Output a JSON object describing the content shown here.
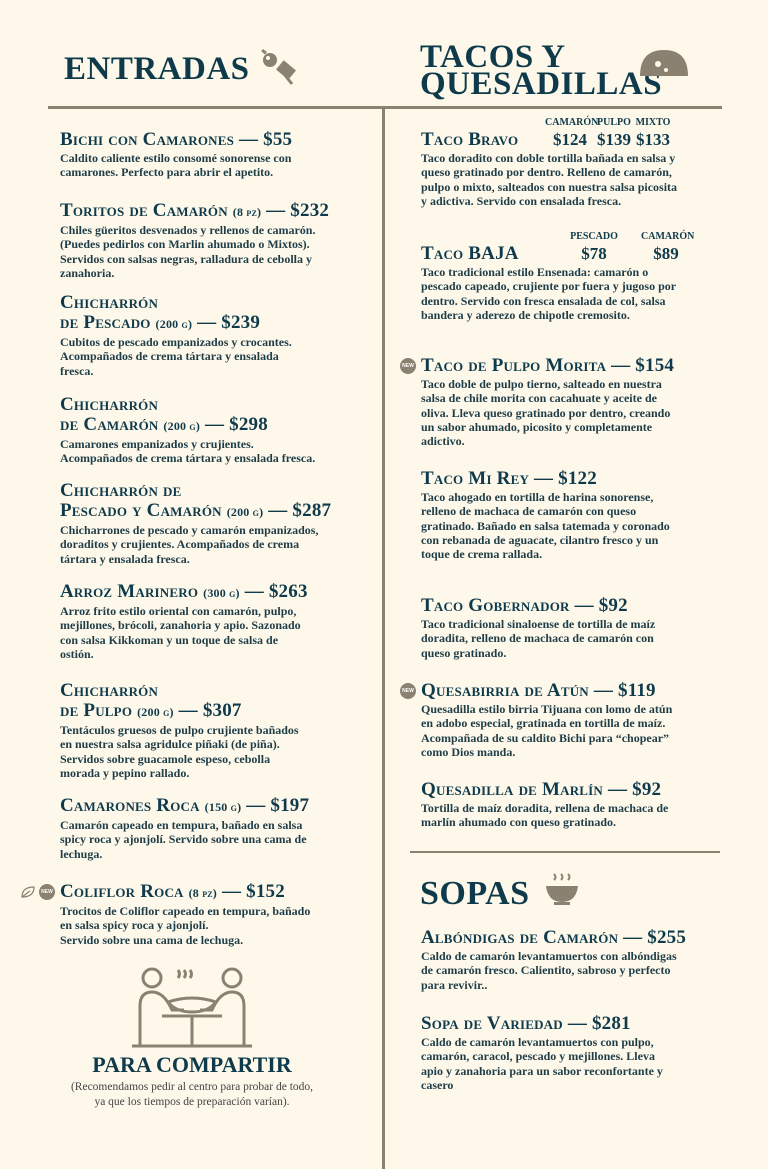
{
  "colors": {
    "primary": "#0f3a4b",
    "accent": "#8b8170",
    "background": "#fdf8ea"
  },
  "entradas": {
    "title": "ENTRADAS",
    "icon": "skewer-icon",
    "items": [
      {
        "name": [
          "Bichi con Camarones"
        ],
        "portion": "",
        "price": "— $55",
        "desc": [
          "Caldito caliente estilo consomé sonorense con",
          "camarones. Perfecto para abrir el apetito."
        ]
      },
      {
        "name": [
          "Toritos de Camarón"
        ],
        "portion": "(8 pz)",
        "price": "— $232",
        "desc": [
          "Chiles güeritos desvenados y rellenos de camarón.",
          "(Puedes pedirlos con Marlin ahumado o Mixtos).",
          "Servidos con salsas negras, ralladura de cebolla y",
          "zanahoria."
        ]
      },
      {
        "name": [
          "Chicharrón",
          "de Pescado"
        ],
        "portion": "(200 g)",
        "price": "— $239",
        "desc": [
          "Cubitos de pescado empanizados y crocantes.",
          "Acompañados de crema tártara y ensalada",
          "fresca."
        ]
      },
      {
        "name": [
          "Chicharrón",
          "de Camarón"
        ],
        "portion": "(200 g)",
        "price": "— $298",
        "desc": [
          "Camarones empanizados y crujientes.",
          "Acompañados de crema tártara y ensalada fresca."
        ]
      },
      {
        "name": [
          "Chicharrón de",
          "Pescado y Camarón"
        ],
        "portion": "(200 g)",
        "price": "— $287",
        "desc": [
          "Chicharrones de pescado y camarón empanizados,",
          "doraditos y crujientes. Acompañados de crema",
          "tártara y ensalada fresca."
        ]
      },
      {
        "name": [
          "Arroz Marinero"
        ],
        "portion": "(300 g)",
        "price": "— $263",
        "desc": [
          "Arroz frito estilo oriental con camarón, pulpo,",
          "mejillones, brócoli, zanahoria y apio. Sazonado",
          "con salsa Kikkoman y un toque de salsa de",
          "ostión."
        ]
      },
      {
        "name": [
          "Chicharrón",
          "de Pulpo"
        ],
        "portion": "(200 g)",
        "price": "— $307",
        "desc": [
          "Tentáculos gruesos de pulpo crujiente bañados",
          "en nuestra salsa agridulce piñaki (de piña).",
          "Servidos sobre guacamole espeso, cebolla",
          "morada y pepino rallado."
        ]
      },
      {
        "name": [
          "Camarones Roca"
        ],
        "portion": "(150 g)",
        "price": "— $197",
        "desc": [
          "Camarón capeado en tempura, bañado en salsa",
          "spicy roca y ajonjolí. Servido sobre una cama de",
          "lechuga."
        ]
      },
      {
        "name": [
          "Coliflor Roca"
        ],
        "portion": "(8 pz)",
        "price": "— $152",
        "desc": [
          "Trocitos de Coliflor capeado en tempura, bañado",
          "en salsa spicy roca y ajonjolí.",
          "Servido sobre una cama de lechuga."
        ],
        "badge": "NEW",
        "veg": true
      }
    ]
  },
  "compartir": {
    "title": "PARA COMPARTIR",
    "note": [
      "(Recomendamos pedir al centro para probar de todo,",
      "ya que los tiempos de preparación varían)."
    ],
    "icon": "sharing-table-icon"
  },
  "tacos": {
    "title": [
      "TACOS Y",
      "QUESADILLAS"
    ],
    "icon": "taco-icon",
    "items": [
      {
        "name": [
          "Taco Bravo"
        ],
        "portion": "",
        "price": "",
        "options": [
          {
            "label": "CAMARÓN",
            "price": "$124"
          },
          {
            "label": "PULPO",
            "price": "$139"
          },
          {
            "label": "MIXTO",
            "price": "$133"
          }
        ],
        "desc": [
          "Taco doradito con doble tortilla bañada en salsa y",
          "queso gratinado por dentro. Relleno de camarón,",
          "pulpo o mixto, salteados con nuestra salsa picosita",
          "y adictiva. Servido con ensalada fresca."
        ]
      },
      {
        "name": [
          "Taco BAJA"
        ],
        "portion": "",
        "price": "",
        "options": [
          {
            "label": "PESCADO",
            "price": "$78"
          },
          {
            "label": "CAMARÓN",
            "price": "$89"
          }
        ],
        "desc": [
          "Taco tradicional estilo Ensenada: camarón o",
          "pescado capeado, crujiente por fuera y jugoso por",
          "dentro. Servido con fresca ensalada de col, salsa",
          "bandera y aderezo de chipotle cremosito."
        ]
      },
      {
        "name": [
          "Taco de Pulpo Morita"
        ],
        "portion": "",
        "price": "— $154",
        "badge": "NEW",
        "desc": [
          "Taco doble de pulpo tierno, salteado en nuestra",
          "salsa de chile morita con cacahuate y aceite de",
          "oliva. Lleva queso gratinado por dentro, creando",
          "un sabor ahumado, picosito y completamente",
          "adictivo."
        ]
      },
      {
        "name": [
          "Taco Mi Rey"
        ],
        "portion": "",
        "price": "— $122",
        "desc": [
          "Taco ahogado en tortilla de harina sonorense,",
          "relleno de machaca de camarón con queso",
          "gratinado. Bañado en salsa tatemada y coronado",
          "con rebanada de aguacate, cilantro fresco y un",
          "toque de crema rallada."
        ]
      },
      {
        "name": [
          "Taco Gobernador"
        ],
        "portion": "",
        "price": "— $92",
        "desc": [
          "Taco tradicional sinaloense de tortilla de maíz",
          "doradita, relleno de machaca de camarón con",
          "queso gratinado."
        ]
      },
      {
        "name": [
          "Quesabirria de Atún"
        ],
        "portion": "",
        "price": "— $119",
        "badge": "NEW",
        "desc": [
          "Quesadilla estilo birria Tijuana con lomo de atún",
          "en adobo especial, gratinada en tortilla de maíz.",
          "Acompañada de su caldito Bichi para “chopear”",
          "como Dios manda."
        ]
      },
      {
        "name": [
          "Quesadilla de Marlín"
        ],
        "portion": "",
        "price": "— $92",
        "desc": [
          "Tortilla de maíz doradita, rellena de machaca de",
          "marlín ahumado con queso gratinado."
        ]
      }
    ]
  },
  "sopas": {
    "title": "SOPAS",
    "icon": "soup-bowl-icon",
    "items": [
      {
        "name": [
          "Albóndigas de Camarón"
        ],
        "portion": "",
        "price": "— $255",
        "desc": [
          "Caldo de camarón levantamuertos con albóndigas",
          "de camarón fresco. Calientito, sabroso y perfecto",
          "para revivir.."
        ]
      },
      {
        "name": [
          "Sopa de Variedad"
        ],
        "portion": "",
        "price": "— $281",
        "desc": [
          "Caldo de camarón levantamuertos con pulpo,",
          "camarón, caracol, pescado y mejillones. Lleva",
          "apio y zanahoria para un sabor reconfortante y",
          "casero"
        ]
      }
    ]
  }
}
